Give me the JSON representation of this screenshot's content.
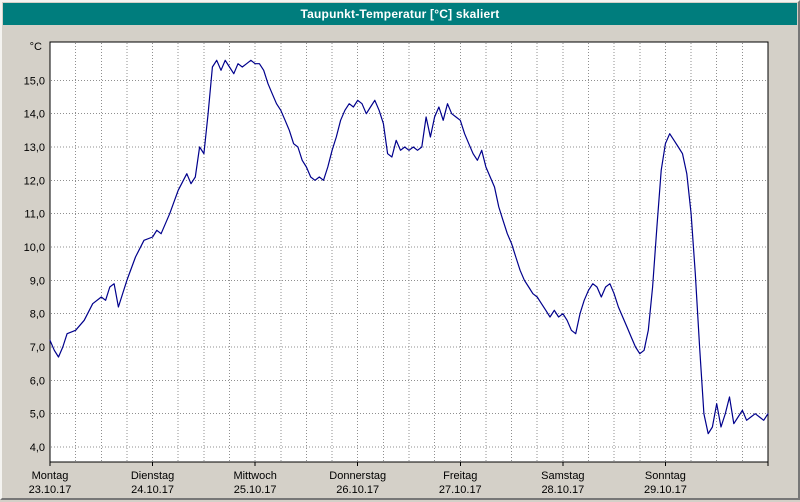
{
  "window": {
    "title": "Taupunkt-Temperatur [°C] skaliert"
  },
  "colors": {
    "titlebar_bg": "#007d7d",
    "titlebar_text": "#ffffff",
    "window_bg": "#d4d0c8",
    "plot_bg": "#ffffff",
    "grid": "#8f8f8f",
    "axis": "#000000",
    "line": "#00008c"
  },
  "chart_data": {
    "type": "line",
    "title": "Taupunkt-Temperatur [°C] skaliert",
    "unit_label": "°C",
    "legend": "none",
    "grid": "dotted",
    "y_axis": {
      "range": [
        3.55,
        16.15
      ],
      "ticks": [
        {
          "value": 4,
          "label": "4,0"
        },
        {
          "value": 5,
          "label": "5,0"
        },
        {
          "value": 6,
          "label": "6,0"
        },
        {
          "value": 7,
          "label": "7,0"
        },
        {
          "value": 8,
          "label": "8,0"
        },
        {
          "value": 9,
          "label": "9,0"
        },
        {
          "value": 10,
          "label": "10,0"
        },
        {
          "value": 11,
          "label": "11,0"
        },
        {
          "value": 12,
          "label": "12,0"
        },
        {
          "value": 13,
          "label": "13,0"
        },
        {
          "value": 14,
          "label": "14,0"
        },
        {
          "value": 15,
          "label": "15,0"
        }
      ]
    },
    "x_axis": {
      "range_hours": [
        0,
        168
      ],
      "grid_step_hours": 6,
      "day_tick_hours": [
        0,
        24,
        48,
        72,
        96,
        120,
        144
      ],
      "days": [
        {
          "name": "Montag",
          "date": "23.10.17"
        },
        {
          "name": "Dienstag",
          "date": "24.10.17"
        },
        {
          "name": "Mittwoch",
          "date": "25.10.17"
        },
        {
          "name": "Donnerstag",
          "date": "26.10.17"
        },
        {
          "name": "Freitag",
          "date": "27.10.17"
        },
        {
          "name": "Samstag",
          "date": "28.10.17"
        },
        {
          "name": "Sonntag",
          "date": "29.10.17"
        }
      ]
    },
    "series": [
      {
        "name": "Taupunkt-Temperatur",
        "color": "#00008c",
        "points_hour_value": [
          [
            0,
            7.2
          ],
          [
            1,
            6.9
          ],
          [
            2,
            6.7
          ],
          [
            3,
            7.0
          ],
          [
            4,
            7.4
          ],
          [
            6,
            7.5
          ],
          [
            8,
            7.8
          ],
          [
            10,
            8.3
          ],
          [
            12,
            8.5
          ],
          [
            13,
            8.4
          ],
          [
            14,
            8.8
          ],
          [
            15,
            8.9
          ],
          [
            16,
            8.2
          ],
          [
            18,
            9.0
          ],
          [
            20,
            9.7
          ],
          [
            22,
            10.2
          ],
          [
            24,
            10.3
          ],
          [
            25,
            10.5
          ],
          [
            26,
            10.4
          ],
          [
            28,
            11.0
          ],
          [
            30,
            11.7
          ],
          [
            32,
            12.2
          ],
          [
            33,
            11.9
          ],
          [
            34,
            12.1
          ],
          [
            35,
            13.0
          ],
          [
            36,
            12.8
          ],
          [
            37,
            14.0
          ],
          [
            38,
            15.4
          ],
          [
            39,
            15.6
          ],
          [
            40,
            15.3
          ],
          [
            41,
            15.6
          ],
          [
            42,
            15.4
          ],
          [
            43,
            15.2
          ],
          [
            44,
            15.5
          ],
          [
            45,
            15.4
          ],
          [
            46,
            15.5
          ],
          [
            47,
            15.6
          ],
          [
            48,
            15.5
          ],
          [
            49,
            15.5
          ],
          [
            50,
            15.3
          ],
          [
            51,
            14.9
          ],
          [
            52,
            14.6
          ],
          [
            53,
            14.3
          ],
          [
            54,
            14.1
          ],
          [
            55,
            13.8
          ],
          [
            56,
            13.5
          ],
          [
            57,
            13.1
          ],
          [
            58,
            13.0
          ],
          [
            59,
            12.6
          ],
          [
            60,
            12.4
          ],
          [
            61,
            12.1
          ],
          [
            62,
            12.0
          ],
          [
            63,
            12.1
          ],
          [
            64,
            12.0
          ],
          [
            65,
            12.4
          ],
          [
            66,
            12.9
          ],
          [
            67,
            13.3
          ],
          [
            68,
            13.8
          ],
          [
            69,
            14.1
          ],
          [
            70,
            14.3
          ],
          [
            71,
            14.2
          ],
          [
            72,
            14.4
          ],
          [
            73,
            14.3
          ],
          [
            74,
            14.0
          ],
          [
            75,
            14.2
          ],
          [
            76,
            14.4
          ],
          [
            77,
            14.1
          ],
          [
            78,
            13.7
          ],
          [
            79,
            12.8
          ],
          [
            80,
            12.7
          ],
          [
            81,
            13.2
          ],
          [
            82,
            12.9
          ],
          [
            83,
            13.0
          ],
          [
            84,
            12.9
          ],
          [
            85,
            13.0
          ],
          [
            86,
            12.9
          ],
          [
            87,
            13.0
          ],
          [
            88,
            13.9
          ],
          [
            89,
            13.3
          ],
          [
            90,
            13.9
          ],
          [
            91,
            14.2
          ],
          [
            92,
            13.8
          ],
          [
            93,
            14.3
          ],
          [
            94,
            14.0
          ],
          [
            95,
            13.9
          ],
          [
            96,
            13.8
          ],
          [
            97,
            13.4
          ],
          [
            98,
            13.1
          ],
          [
            99,
            12.8
          ],
          [
            100,
            12.6
          ],
          [
            101,
            12.9
          ],
          [
            102,
            12.4
          ],
          [
            103,
            12.1
          ],
          [
            104,
            11.8
          ],
          [
            105,
            11.2
          ],
          [
            106,
            10.8
          ],
          [
            107,
            10.4
          ],
          [
            108,
            10.1
          ],
          [
            109,
            9.7
          ],
          [
            110,
            9.3
          ],
          [
            111,
            9.0
          ],
          [
            112,
            8.8
          ],
          [
            113,
            8.6
          ],
          [
            114,
            8.5
          ],
          [
            115,
            8.3
          ],
          [
            116,
            8.1
          ],
          [
            117,
            7.9
          ],
          [
            118,
            8.1
          ],
          [
            119,
            7.9
          ],
          [
            120,
            8.0
          ],
          [
            121,
            7.8
          ],
          [
            122,
            7.5
          ],
          [
            123,
            7.4
          ],
          [
            124,
            8.0
          ],
          [
            125,
            8.4
          ],
          [
            126,
            8.7
          ],
          [
            127,
            8.9
          ],
          [
            128,
            8.8
          ],
          [
            129,
            8.5
          ],
          [
            130,
            8.8
          ],
          [
            131,
            8.9
          ],
          [
            132,
            8.6
          ],
          [
            133,
            8.2
          ],
          [
            134,
            7.9
          ],
          [
            135,
            7.6
          ],
          [
            136,
            7.3
          ],
          [
            137,
            7.0
          ],
          [
            138,
            6.8
          ],
          [
            139,
            6.9
          ],
          [
            140,
            7.5
          ],
          [
            141,
            8.8
          ],
          [
            142,
            10.6
          ],
          [
            143,
            12.3
          ],
          [
            144,
            13.1
          ],
          [
            145,
            13.4
          ],
          [
            146,
            13.2
          ],
          [
            147,
            13.0
          ],
          [
            148,
            12.8
          ],
          [
            149,
            12.2
          ],
          [
            150,
            11.0
          ],
          [
            151,
            9.2
          ],
          [
            152,
            7.0
          ],
          [
            153,
            5.0
          ],
          [
            154,
            4.4
          ],
          [
            155,
            4.6
          ],
          [
            156,
            5.3
          ],
          [
            157,
            4.6
          ],
          [
            158,
            5.0
          ],
          [
            159,
            5.5
          ],
          [
            160,
            4.7
          ],
          [
            161,
            4.9
          ],
          [
            162,
            5.1
          ],
          [
            163,
            4.8
          ],
          [
            164,
            4.9
          ],
          [
            165,
            5.0
          ],
          [
            166,
            4.9
          ],
          [
            167,
            4.8
          ],
          [
            168,
            5.0
          ]
        ]
      }
    ]
  }
}
